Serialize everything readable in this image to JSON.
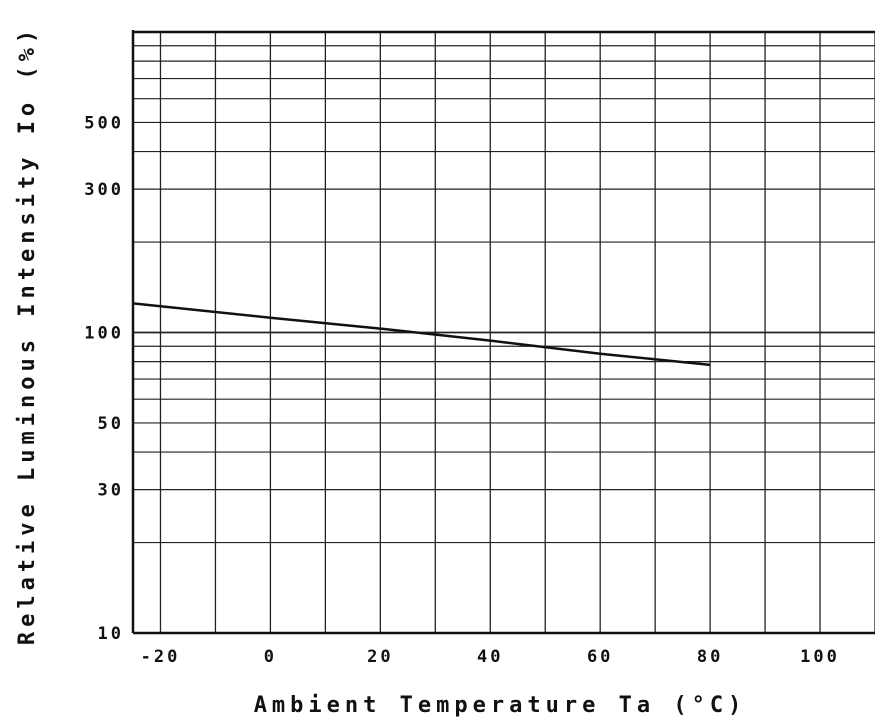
{
  "chart_data": {
    "type": "line",
    "xlabel": "Ambient Temperature Ta (°C)",
    "ylabel": "Relative Luminous Intensity Io (%)",
    "x_scale": "linear",
    "y_scale": "log",
    "xlim": [
      -25,
      110
    ],
    "ylim": [
      10,
      1000
    ],
    "x_ticks": [
      -20,
      0,
      20,
      40,
      60,
      80,
      100
    ],
    "x_tick_labels": [
      "-20",
      "0",
      "20",
      "40",
      "60",
      "80",
      "100"
    ],
    "y_ticks": [
      10,
      30,
      50,
      100,
      300,
      500
    ],
    "y_tick_labels": [
      "10",
      "30",
      "50",
      "100",
      "300",
      "500"
    ],
    "grid": true,
    "series": [
      {
        "color": "#111111",
        "x": [
          -25,
          0,
          20,
          40,
          60,
          80
        ],
        "y": [
          125,
          112,
          103,
          94,
          85,
          78
        ]
      }
    ]
  }
}
